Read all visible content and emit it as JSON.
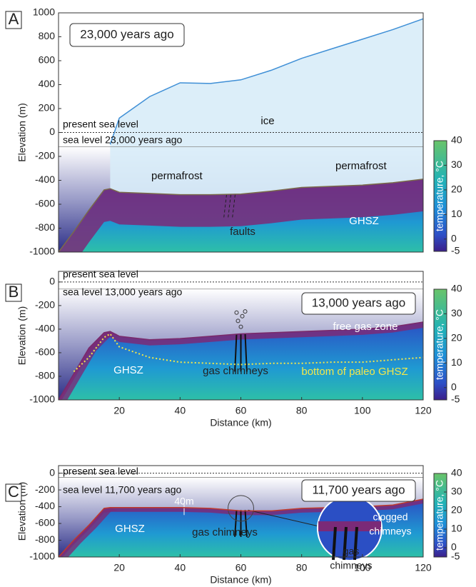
{
  "chart_data": [
    {
      "type": "cross-section",
      "panel_label": "A",
      "title": "23,000 years ago",
      "ylabel": "Elevation (m)",
      "xlim": [
        0,
        120
      ],
      "ylim": [
        -1000,
        1000
      ],
      "yticks": [
        -1000,
        -800,
        -600,
        -400,
        -200,
        0,
        200,
        400,
        600,
        800,
        1000
      ],
      "present_sea_level": 0,
      "sea_level": -120,
      "x": [
        0,
        5,
        10,
        15,
        17,
        20,
        30,
        40,
        50,
        60,
        70,
        80,
        90,
        100,
        110,
        120
      ],
      "series": [
        {
          "color": "#7a6a4a",
          "values": [
            -1000,
            -830,
            -650,
            -480,
            -470,
            -500,
            -510,
            -520,
            -520,
            -515,
            -490,
            -460,
            -450,
            -440,
            -420,
            -390
          ]
        },
        {
          "color": "#3f8fd6",
          "values": [
            null,
            null,
            null,
            null,
            -100,
            120,
            300,
            415,
            410,
            440,
            520,
            620,
            700,
            780,
            860,
            950
          ]
        }
      ],
      "colorbar": {
        "label": "temperature, °C",
        "clim": [
          -5,
          40
        ],
        "cticks": [
          -5,
          0,
          10,
          20,
          30,
          40
        ]
      },
      "annotations": [
        "present sea level",
        "sea level 23,000 years ago",
        "ice",
        "permafrost",
        "permafrost",
        "GHSZ",
        "faults"
      ]
    },
    {
      "type": "cross-section",
      "panel_label": "B",
      "title": "13,000 years ago",
      "ylabel": "Elevation (m)",
      "xlabel": "Distance (km)",
      "xlim": [
        0,
        120
      ],
      "xticks": [
        20,
        40,
        60,
        80,
        100,
        120
      ],
      "ylim": [
        -1000,
        90
      ],
      "yticks": [
        -1000,
        -800,
        -600,
        -400,
        -200,
        0
      ],
      "present_sea_level": 0,
      "sea_level": -60,
      "x": [
        0,
        5,
        10,
        15,
        17,
        20,
        30,
        40,
        50,
        60,
        70,
        80,
        90,
        100,
        110,
        120
      ],
      "series": [
        {
          "color": "#7a2a6a",
          "values": [
            -1000,
            -780,
            -560,
            -430,
            -420,
            -460,
            -490,
            -480,
            -460,
            -440,
            -430,
            -420,
            -410,
            -400,
            -380,
            -340
          ]
        },
        {
          "color": "#f2e84a",
          "values": [
            null,
            -760,
            -640,
            -470,
            -440,
            -550,
            -640,
            -680,
            -690,
            -700,
            -690,
            -690,
            -680,
            -680,
            -660,
            -640
          ]
        }
      ],
      "colorbar": {
        "label": "temperature, °C",
        "clim": [
          -5,
          40
        ],
        "cticks": [
          -5,
          0,
          10,
          20,
          30,
          40
        ]
      },
      "annotations": [
        "present sea level",
        "sea level 13,000 years ago",
        "free gas zone",
        "GHSZ",
        "gas chimneys",
        "bottom of paleo GHSZ"
      ]
    },
    {
      "type": "cross-section",
      "panel_label": "C",
      "title": "11,700 years ago",
      "ylabel": "Elevation (m)",
      "xlabel": "Distance (km)",
      "xlim": [
        0,
        120
      ],
      "xticks": [
        20,
        40,
        60,
        80,
        100,
        120
      ],
      "ylim": [
        -1000,
        90
      ],
      "yticks": [
        -1000,
        -800,
        -600,
        -400,
        -200,
        0
      ],
      "present_sea_level": 0,
      "sea_level": -50,
      "x": [
        0,
        5,
        10,
        15,
        17,
        20,
        30,
        40,
        50,
        60,
        70,
        80,
        90,
        100,
        110,
        120
      ],
      "series": [
        {
          "color": "#c0392b",
          "values": [
            -1000,
            -800,
            -620,
            -420,
            -410,
            -410,
            -410,
            -410,
            -420,
            -450,
            -450,
            -420,
            -410,
            -400,
            -380,
            -310
          ]
        }
      ],
      "colorbar": {
        "label": "temperature, °C",
        "clim": [
          -5,
          40
        ],
        "cticks": [
          -5,
          0,
          10,
          20,
          30,
          40
        ]
      },
      "annotations": [
        "present sea level",
        "sea level 11,700 years ago",
        "40m",
        "GHSZ",
        "gas chimneys",
        "clogged",
        "chimneys",
        "gas",
        "chimneys"
      ]
    }
  ]
}
